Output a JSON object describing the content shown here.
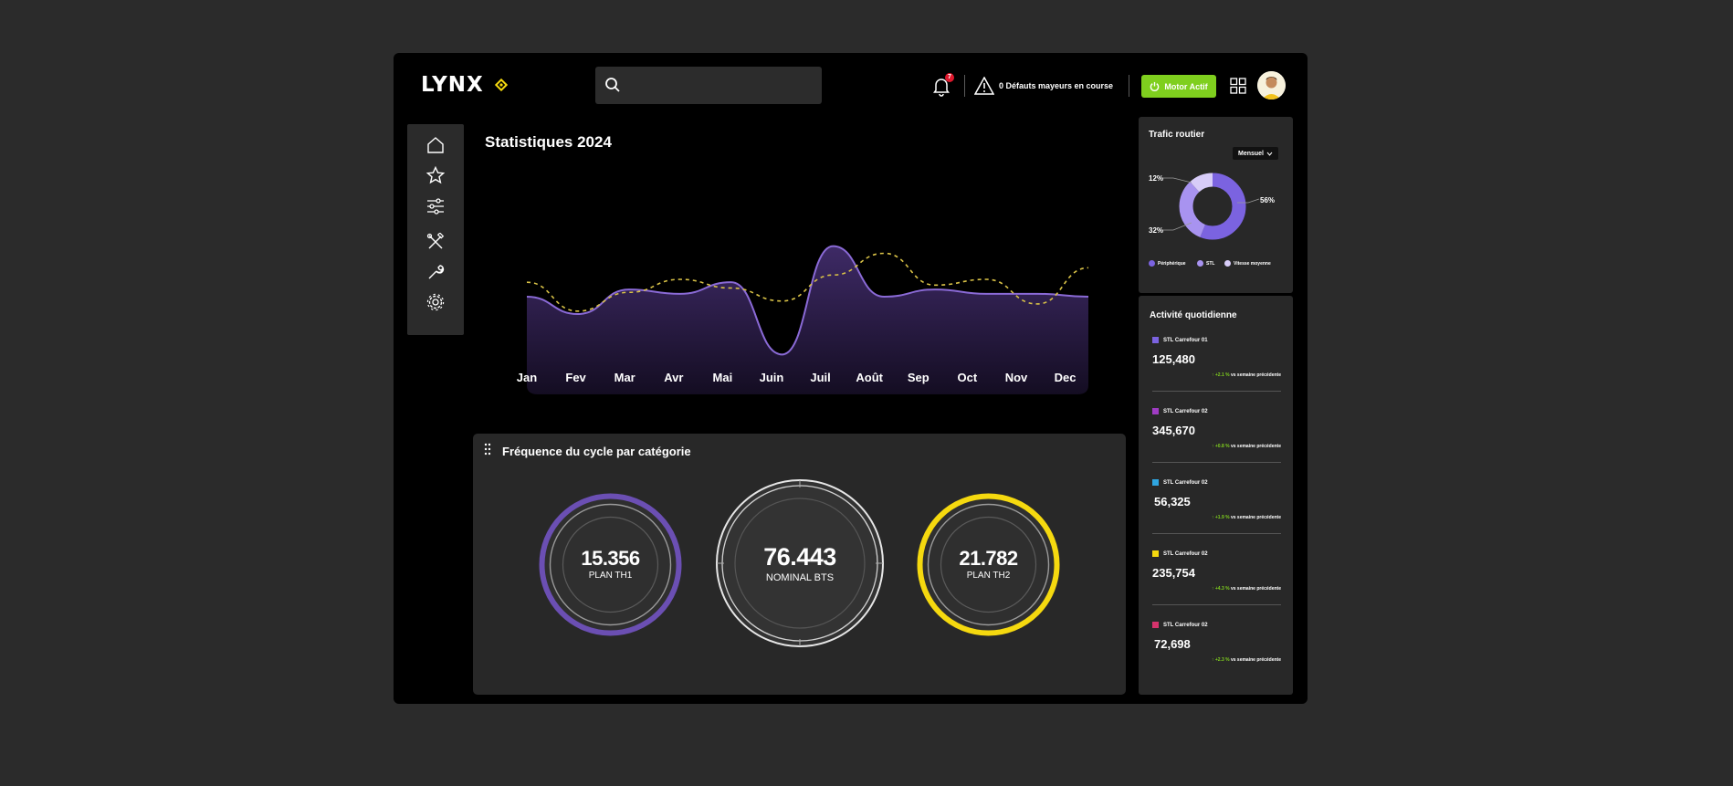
{
  "header": {
    "logo_text": "LYNX",
    "notification_count": "7",
    "alert_text": "0 Défauts mayeurs en course",
    "motor_button": "Motor Actif",
    "icons": [
      "search-icon",
      "bell-icon",
      "warning-icon",
      "power-icon",
      "grid-icon",
      "avatar"
    ]
  },
  "sidebar": {
    "items": [
      "home-icon",
      "star-icon",
      "sliders-icon",
      "tools-icon",
      "wrench-icon",
      "gear-icon"
    ]
  },
  "chart": {
    "title": "Statistiques 2024",
    "months": [
      "Jan",
      "Fev",
      "Mar",
      "Avr",
      "Mai",
      "Juin",
      "Juil",
      "Août",
      "Sep",
      "Oct",
      "Nov",
      "Dec"
    ]
  },
  "chart_data": {
    "type": "area",
    "x": [
      "Jan",
      "Fev",
      "Mar",
      "Avr",
      "Mai",
      "Juin",
      "Juil",
      "Août",
      "Sep",
      "Oct",
      "Nov",
      "Dec"
    ],
    "series": [
      {
        "style": "area",
        "color": "#8a6ad6",
        "values": [
          60,
          48,
          65,
          62,
          70,
          20,
          95,
          60,
          65,
          62,
          62,
          60
        ]
      },
      {
        "style": "dashed-line",
        "color": "#d9c247",
        "values": [
          70,
          50,
          63,
          72,
          66,
          57,
          75,
          90,
          68,
          72,
          55,
          80
        ]
      }
    ],
    "ylim": [
      0,
      120
    ],
    "grid": false
  },
  "frequency": {
    "title": "Fréquence du cycle par catégorie",
    "gauges": [
      {
        "value": "15.356",
        "label": "PLAN TH1",
        "color": "#6b4fb3"
      },
      {
        "value": "76.443",
        "label": "NOMINAL BTS",
        "color": "#e6e6e6"
      },
      {
        "value": "21.782",
        "label": "PLAN TH2",
        "color": "#f5d90f"
      }
    ]
  },
  "traffic": {
    "title": "Trafic routier",
    "period": "Mensuel",
    "percent_12": "12%",
    "percent_56": "56%",
    "percent_32": "32%",
    "slices": [
      {
        "name": "Périphérique",
        "value": 56,
        "color": "#7b63e0"
      },
      {
        "name": "STL",
        "value": 32,
        "color": "#a893f0"
      },
      {
        "name": "Vitesse moyenne",
        "value": 12,
        "color": "#d7ccf8"
      }
    ],
    "legend": [
      "Périphérique",
      "STL",
      "Vitesse moyenne"
    ]
  },
  "activity": {
    "title": "Activité quotidienne",
    "items": [
      {
        "label": "STL Carrefour 01",
        "value": "125,480",
        "delta": "+2.1 %",
        "delta_note": "vs semaine précédente",
        "color": "#7b63e0"
      },
      {
        "label": "STL Carrefour 02",
        "value": "345,670",
        "delta": "+0.8 %",
        "delta_note": "vs semaine précédente",
        "color": "#a03cc4"
      },
      {
        "label": "STL Carrefour 02",
        "value": "56,325",
        "delta": "+1.9 %",
        "delta_note": "vs semaine précédente",
        "color": "#2fa5e0"
      },
      {
        "label": "STL Carrefour 02",
        "value": "235,754",
        "delta": "+4.3 %",
        "delta_note": "vs semaine précédente",
        "color": "#f5d90f"
      },
      {
        "label": "STL Carrefour 02",
        "value": "72,698",
        "delta": "+2.3 %",
        "delta_note": "vs semaine précédente",
        "color": "#d6336c"
      }
    ]
  }
}
